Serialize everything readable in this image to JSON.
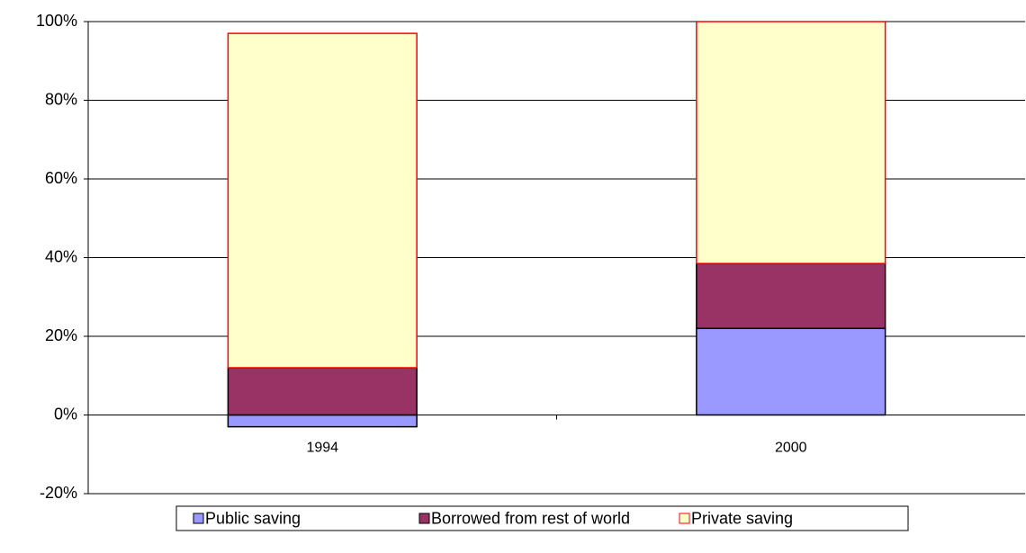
{
  "chart_data": {
    "type": "stacked_bar",
    "categories": [
      "1994",
      "2000"
    ],
    "series": [
      {
        "name": "Public saving",
        "color": "#9999ff",
        "edgecolor": "#000000",
        "values": [
          -3,
          22
        ]
      },
      {
        "name": "Borrowed from rest of world",
        "color": "#993366",
        "edgecolor": "#000000",
        "values": [
          12,
          16.5
        ]
      },
      {
        "name": "Private saving",
        "color": "#ffffcc",
        "edgecolor": "#ff0000",
        "values": [
          85,
          61.5
        ]
      }
    ],
    "ylim": [
      -20,
      100
    ],
    "yticks": [
      {
        "value": -20,
        "label": "-20%"
      },
      {
        "value": 0,
        "label": "0%"
      },
      {
        "value": 20,
        "label": "20%"
      },
      {
        "value": 40,
        "label": "40%"
      },
      {
        "value": 60,
        "label": "60%"
      },
      {
        "value": 80,
        "label": "80%"
      },
      {
        "value": 100,
        "label": "100%"
      }
    ],
    "grid": true,
    "legend": "bottom"
  }
}
